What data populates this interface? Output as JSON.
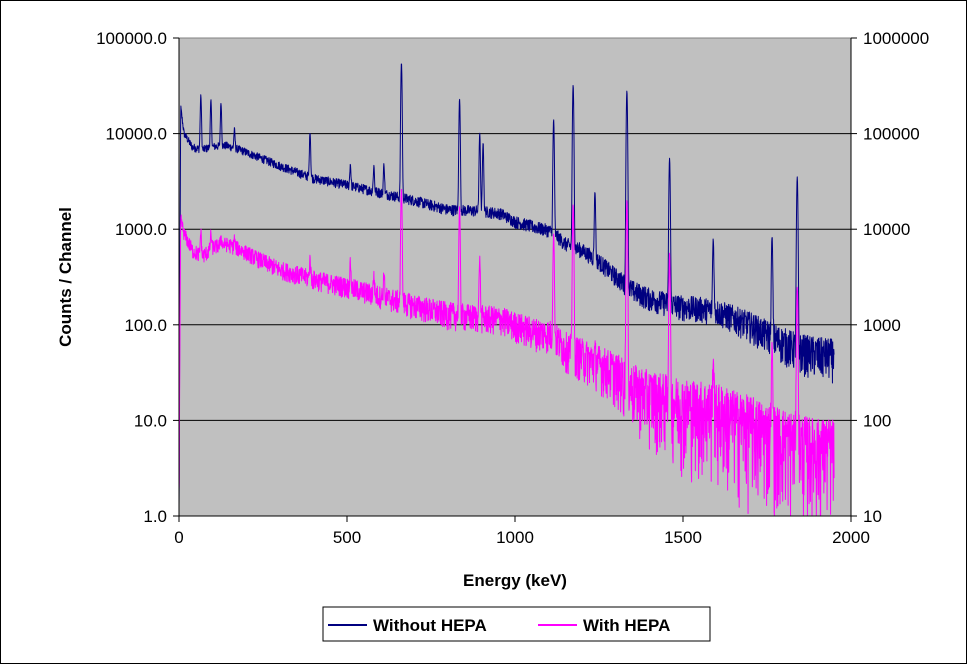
{
  "chart_data": {
    "type": "line",
    "title": "",
    "xlabel": "Energy (keV)",
    "ylabel": "Counts / Channel",
    "xlim": [
      0,
      2000
    ],
    "ylim_left": [
      1,
      100000
    ],
    "ylim_right": [
      10,
      1000000
    ],
    "yscale": "log",
    "grid": "horizontal",
    "plot_background": "#c0c0c0",
    "legend_position": "bottom",
    "x_ticks": [
      "0",
      "500",
      "1000",
      "1500",
      "2000"
    ],
    "y_ticks_left": [
      "1.0",
      "10.0",
      "100.0",
      "1000.0",
      "10000.0",
      "100000.0"
    ],
    "y_ticks_right": [
      "10",
      "100",
      "1000",
      "10000",
      "100000",
      "1000000"
    ],
    "series": [
      {
        "name": "Without HEPA",
        "axis": "left",
        "color": "#000080",
        "baseline": [
          [
            0,
            1.0
          ],
          [
            5,
            19000
          ],
          [
            15,
            10000
          ],
          [
            40,
            7200
          ],
          [
            70,
            6800
          ],
          [
            100,
            7300
          ],
          [
            140,
            7500
          ],
          [
            180,
            6800
          ],
          [
            230,
            5800
          ],
          [
            300,
            4600
          ],
          [
            400,
            3400
          ],
          [
            500,
            2900
          ],
          [
            600,
            2400
          ],
          [
            700,
            2000
          ],
          [
            800,
            1600
          ],
          [
            900,
            1550
          ],
          [
            960,
            1450
          ],
          [
            1000,
            1200
          ],
          [
            1060,
            1050
          ],
          [
            1110,
            950
          ],
          [
            1150,
            700
          ],
          [
            1200,
            600
          ],
          [
            1250,
            460
          ],
          [
            1300,
            320
          ],
          [
            1350,
            230
          ],
          [
            1400,
            190
          ],
          [
            1450,
            170
          ],
          [
            1500,
            155
          ],
          [
            1550,
            150
          ],
          [
            1600,
            140
          ],
          [
            1650,
            120
          ],
          [
            1700,
            100
          ],
          [
            1750,
            80
          ],
          [
            1800,
            65
          ],
          [
            1850,
            55
          ],
          [
            1900,
            50
          ],
          [
            1950,
            48
          ]
        ],
        "peaks": [
          [
            65,
            25000
          ],
          [
            95,
            22000
          ],
          [
            125,
            21000
          ],
          [
            165,
            11000
          ],
          [
            390,
            10500
          ],
          [
            510,
            4800
          ],
          [
            580,
            4600
          ],
          [
            610,
            4800
          ],
          [
            662,
            55000
          ],
          [
            835,
            23000
          ],
          [
            895,
            10000
          ],
          [
            905,
            8000
          ],
          [
            1115,
            14000
          ],
          [
            1173,
            32000
          ],
          [
            1238,
            2500
          ],
          [
            1333,
            28000
          ],
          [
            1460,
            5500
          ],
          [
            1590,
            800
          ],
          [
            1765,
            850
          ],
          [
            1840,
            3500
          ]
        ]
      },
      {
        "name": "With HEPA",
        "axis": "left",
        "color": "#ff00ff",
        "baseline": [
          [
            0,
            1.0
          ],
          [
            5,
            1300
          ],
          [
            15,
            900
          ],
          [
            40,
            600
          ],
          [
            70,
            520
          ],
          [
            100,
            650
          ],
          [
            140,
            700
          ],
          [
            180,
            620
          ],
          [
            230,
            500
          ],
          [
            300,
            380
          ],
          [
            400,
            300
          ],
          [
            500,
            250
          ],
          [
            600,
            200
          ],
          [
            700,
            160
          ],
          [
            800,
            130
          ],
          [
            900,
            120
          ],
          [
            960,
            115
          ],
          [
            1000,
            100
          ],
          [
            1060,
            85
          ],
          [
            1110,
            80
          ],
          [
            1150,
            58
          ],
          [
            1200,
            48
          ],
          [
            1250,
            40
          ],
          [
            1300,
            32
          ],
          [
            1350,
            23
          ],
          [
            1400,
            19
          ],
          [
            1450,
            17
          ],
          [
            1500,
            15
          ],
          [
            1550,
            14
          ],
          [
            1600,
            13
          ],
          [
            1650,
            11
          ],
          [
            1700,
            9.5
          ],
          [
            1750,
            8
          ],
          [
            1800,
            7
          ],
          [
            1850,
            6
          ],
          [
            1900,
            5.5
          ],
          [
            1950,
            5.5
          ]
        ],
        "peaks": [
          [
            65,
            950
          ],
          [
            95,
            900
          ],
          [
            125,
            850
          ],
          [
            165,
            800
          ],
          [
            390,
            500
          ],
          [
            510,
            450
          ],
          [
            580,
            330
          ],
          [
            610,
            350
          ],
          [
            662,
            2700
          ],
          [
            835,
            1700
          ],
          [
            895,
            500
          ],
          [
            1115,
            900
          ],
          [
            1173,
            1800
          ],
          [
            1238,
            50
          ],
          [
            1333,
            2000
          ],
          [
            1460,
            550
          ],
          [
            1590,
            45
          ],
          [
            1765,
            60
          ],
          [
            1840,
            250
          ]
        ]
      }
    ]
  }
}
